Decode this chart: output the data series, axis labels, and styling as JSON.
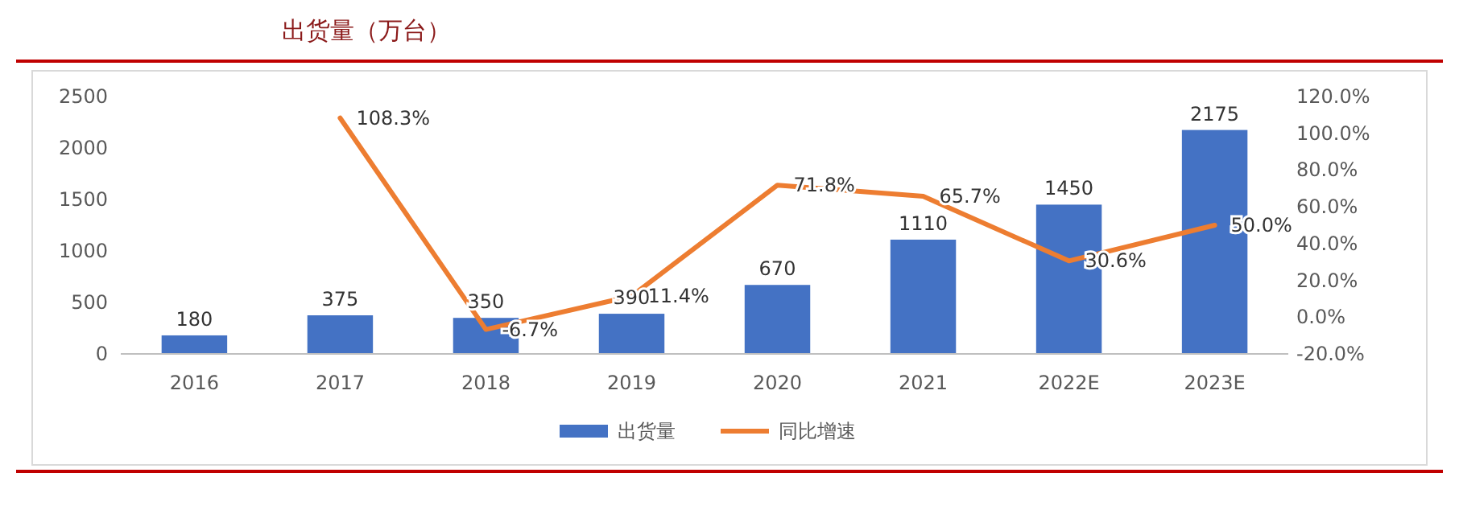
{
  "chart_data": {
    "type": "bar",
    "title": "出货量（万台）",
    "categories": [
      "2016",
      "2017",
      "2018",
      "2019",
      "2020",
      "2021",
      "2022E",
      "2023E"
    ],
    "series": [
      {
        "name": "出货量",
        "color": "#4472c4",
        "values": [
          180,
          375,
          350,
          390,
          670,
          1110,
          1450,
          2175
        ]
      },
      {
        "name": "同比增速",
        "type": "line",
        "axis": "y2",
        "color": "#ed7d31",
        "values": [
          null,
          108.3,
          -6.7,
          11.4,
          71.8,
          65.7,
          30.6,
          50.0
        ],
        "value_labels": [
          null,
          "108.3%",
          "-6.7%",
          "11.4%",
          "71.8%",
          "65.7%",
          "30.6%",
          "50.0%"
        ]
      }
    ],
    "data_labels": true,
    "ylim": [
      0,
      2500
    ],
    "yticks": [
      0,
      500,
      1000,
      1500,
      2000,
      2500
    ],
    "y2lim": [
      -20,
      120
    ],
    "y2ticks": [
      {
        "value": -20,
        "label": "-20.0%"
      },
      {
        "value": 0,
        "label": "0.0%"
      },
      {
        "value": 20,
        "label": "20.0%"
      },
      {
        "value": 40,
        "label": "40.0%"
      },
      {
        "value": 60,
        "label": "60.0%"
      },
      {
        "value": 80,
        "label": "80.0%"
      },
      {
        "value": 100,
        "label": "100.0%"
      },
      {
        "value": 120,
        "label": "120.0%"
      }
    ],
    "grid": false,
    "legend": "bottom",
    "marker": "none",
    "line_style": "solid"
  }
}
